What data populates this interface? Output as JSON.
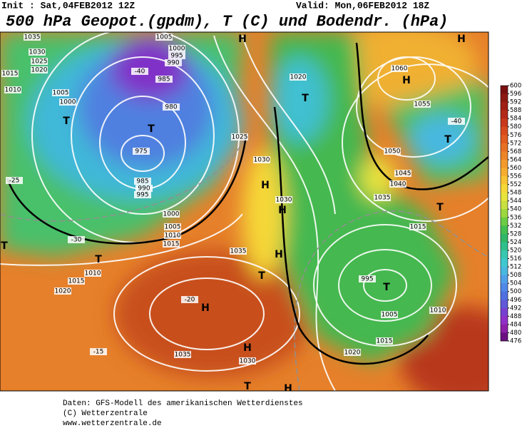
{
  "header": {
    "init": "Init : Sat,04FEB2012 12Z",
    "valid": "Valid: Mon,06FEB2012 18Z",
    "title": "500 hPa Geopot.(gpdm), T (C) und Bodendr. (hPa)"
  },
  "colorbar": {
    "ticks": [
      600,
      596,
      592,
      588,
      584,
      580,
      576,
      572,
      568,
      564,
      560,
      556,
      552,
      548,
      544,
      540,
      536,
      532,
      528,
      524,
      520,
      516,
      512,
      508,
      504,
      500,
      496,
      492,
      488,
      484,
      480,
      476
    ],
    "colors": [
      "#7a1010",
      "#8c1a12",
      "#a01e14",
      "#b42a18",
      "#c8381c",
      "#d84a1e",
      "#e05c20",
      "#e87024",
      "#ee8428",
      "#f29a2c",
      "#f6ae30",
      "#f8c434",
      "#f6d838",
      "#e8e43c",
      "#c8e040",
      "#9cd840",
      "#6ccc44",
      "#44c050",
      "#30b868",
      "#30c08c",
      "#38c8b0",
      "#40c8d0",
      "#48b8e0",
      "#50a0e8",
      "#5088e8",
      "#5070e0",
      "#6058d8",
      "#7840d0",
      "#9030c8",
      "#8c20a8",
      "#6a1080"
    ]
  },
  "map_labels": [
    "1035",
    "1030",
    "1025",
    "1020",
    "1015",
    "1010",
    "1005",
    "1000",
    "T",
    "-40",
    "1005",
    "1000",
    "995",
    "990",
    "985",
    "980",
    "T",
    "975",
    "985",
    "990",
    "995",
    "H",
    "T",
    "1020",
    "1025",
    "1030",
    "H",
    "1030",
    "H",
    "-25",
    "1000",
    "1005",
    "1010",
    "1015",
    "1035",
    "T",
    "1010",
    "1015",
    "1020",
    "H",
    "1035",
    "H",
    "1030",
    "T",
    "H",
    "T",
    "995",
    "1005",
    "1010",
    "1015",
    "1020",
    "1060",
    "H",
    "1055",
    "T",
    "-40",
    "1050",
    "1045",
    "1040",
    "1035",
    "T",
    "1015",
    "H",
    "-20",
    "-15",
    "-30",
    "T",
    "H",
    "T"
  ],
  "footer": [
    "Daten: GFS-Modell des amerikanischen Wetterdienstes",
    "(C) Wetterzentrale",
    "www.wetterzentrale.de"
  ]
}
